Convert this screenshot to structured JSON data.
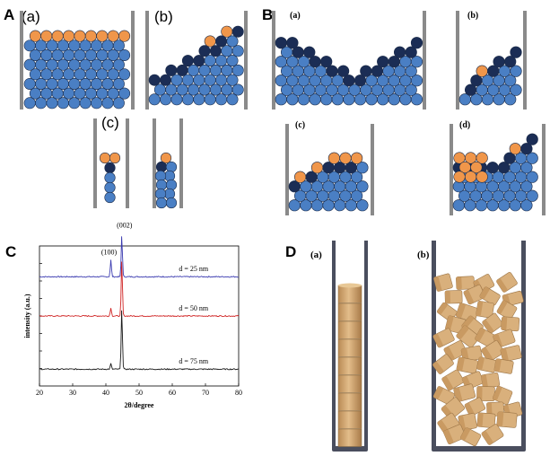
{
  "panel_labels": {
    "A": "A",
    "B": "B",
    "C": "C",
    "D": "D"
  },
  "sub_labels": {
    "A": [
      "(a)",
      "(b)",
      "(c)"
    ],
    "B": [
      "(a)",
      "(b)",
      "(c)",
      "(d)"
    ],
    "D": [
      "(a)",
      "(b)"
    ]
  },
  "colors": {
    "blue": "#4a7fc4",
    "navy": "#1b2d55",
    "orange": "#f0964a",
    "wall": "#8a8a8a",
    "tube": "#4a4e5e",
    "block": "#d9b07c",
    "xrd_top": "#3b3bb0",
    "xrd_mid": "#d02525",
    "xrd_bot": "#1a1a1a"
  },
  "chart_data": {
    "type": "line",
    "title": "",
    "xlabel": "2θ/degree",
    "ylabel": "intensity (a.u.)",
    "xlim": [
      20,
      80
    ],
    "xticks": [
      "20",
      "30",
      "40",
      "50",
      "60",
      "70",
      "80"
    ],
    "grid": false,
    "peak_labels": [
      "(100)",
      "(002)"
    ],
    "peaks_x": [
      41.5,
      44.8
    ],
    "series": [
      {
        "name": "d = 25 nm",
        "color": "#3b3bb0",
        "baseline": 0.78,
        "peak_heights": [
          0.12,
          0.3
        ]
      },
      {
        "name": "d = 50 nm",
        "color": "#d02525",
        "baseline": 0.5,
        "peak_heights": [
          0.06,
          0.4
        ]
      },
      {
        "name": "d = 75 nm",
        "color": "#1a1a1a",
        "baseline": 0.12,
        "peak_heights": [
          0.04,
          0.44
        ]
      }
    ],
    "annotations": [
      "d = 25 nm",
      "d = 50 nm",
      "d = 75 nm"
    ]
  }
}
